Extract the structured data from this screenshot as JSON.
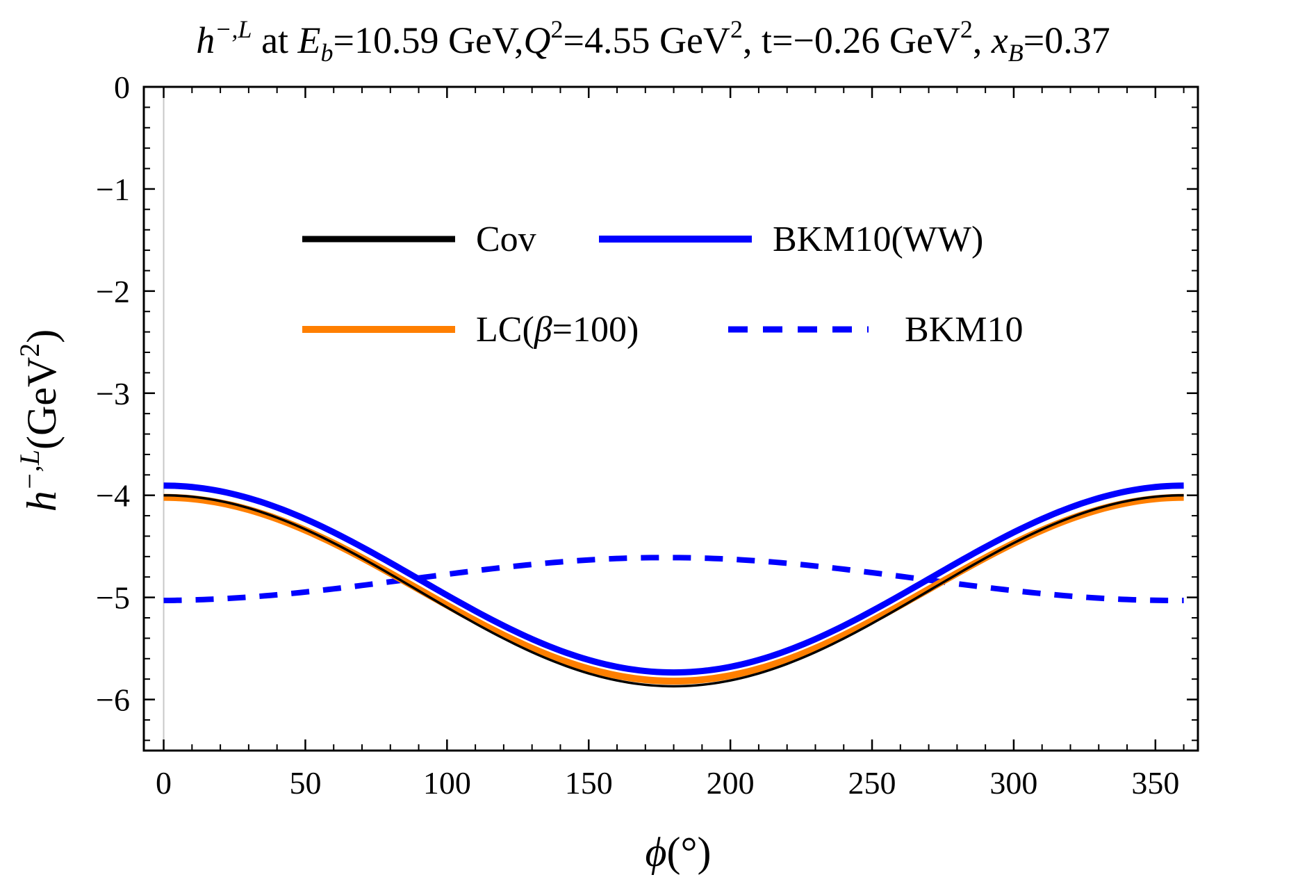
{
  "chart_data": {
    "type": "line",
    "title": {
      "symbol": "h",
      "symbol_sup": "−,L",
      "at": " at ",
      "eb_symbol": "E",
      "eb_sub": "b",
      "eb_value": "=10.59 GeV,",
      "q_symbol": "Q",
      "q_sup": "2",
      "q_value": "=4.55 GeV",
      "q_unit_sup": "2",
      "t_part": ", t=−0.26 GeV",
      "t_unit_sup": "2",
      "comma": ", ",
      "xb_symbol": "x",
      "xb_sub": "B",
      "xb_value": "=0.37"
    },
    "xlabel": {
      "symbol": "ϕ",
      "unit": "(°)"
    },
    "ylabel": {
      "symbol": "h",
      "sup": "−,L",
      "unit": "(GeV",
      "unit_sup": "2",
      "close": ")"
    },
    "xlim": [
      -7,
      365
    ],
    "ylim": [
      -6.5,
      0
    ],
    "x_ticks": [
      0,
      50,
      100,
      150,
      200,
      250,
      300,
      350
    ],
    "x_tick_labels": [
      "0",
      "50",
      "100",
      "150",
      "200",
      "250",
      "300",
      "350"
    ],
    "y_ticks": [
      0,
      -1,
      -2,
      -3,
      -4,
      -5,
      -6
    ],
    "y_tick_labels": [
      "0",
      "−1",
      "−2",
      "−3",
      "−4",
      "−5",
      "−6"
    ],
    "x_range": [
      0,
      360
    ],
    "series": [
      {
        "name": "Cov",
        "model": {
          "a": -4.935,
          "b": 0.935,
          "c": 0
        },
        "color": "#000000",
        "dashed": false
      },
      {
        "name": "LC(β=100)",
        "name_prefix": "LC(",
        "name_symbol": "β",
        "name_suffix": "=100)",
        "model": {
          "a": -4.92,
          "b": 0.9,
          "c": 0
        },
        "color": "#ff7f00",
        "dashed": false
      },
      {
        "name": "BKM10(WW)",
        "model": {
          "a": -4.82,
          "b": 0.915,
          "c": 0
        },
        "color": "#0000ff",
        "dashed": false
      },
      {
        "name": "BKM10",
        "model": {
          "a": -4.82,
          "b": -0.21,
          "c": 0.01
        },
        "color": "#0000ff",
        "dashed": true
      }
    ]
  }
}
